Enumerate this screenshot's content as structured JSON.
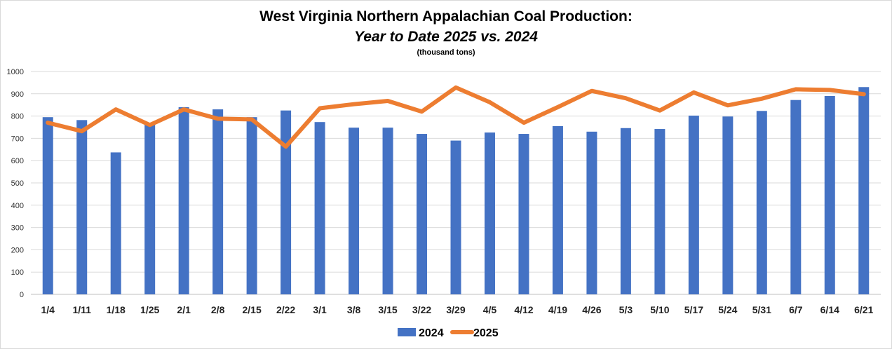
{
  "chart_data": {
    "type": "bar",
    "title": "West Virginia Northern Appalachian Coal Production:",
    "subtitle": "Year to Date 2025 vs. 2024",
    "unit_note": "(thousand tons)",
    "xlabel": "",
    "ylabel": "",
    "ylim": [
      0,
      1000
    ],
    "yticks": [
      0,
      100,
      200,
      300,
      400,
      500,
      600,
      700,
      800,
      900,
      1000
    ],
    "grid": true,
    "legend_position": "bottom",
    "categories": [
      "1/4",
      "1/11",
      "1/18",
      "1/25",
      "2/1",
      "2/8",
      "2/15",
      "2/22",
      "3/1",
      "3/8",
      "3/15",
      "3/22",
      "3/29",
      "4/5",
      "4/12",
      "4/19",
      "4/26",
      "5/3",
      "5/10",
      "5/17",
      "5/24",
      "5/31",
      "6/7",
      "6/14",
      "6/21"
    ],
    "series": [
      {
        "name": "2024",
        "kind": "bar",
        "color": "#4472C4",
        "values": [
          795,
          782,
          637,
          768,
          840,
          830,
          795,
          825,
          773,
          748,
          748,
          720,
          690,
          726,
          720,
          755,
          730,
          746,
          742,
          802,
          798,
          823,
          872,
          890,
          930
        ]
      },
      {
        "name": "2025",
        "kind": "line",
        "color": "#ED7D31",
        "values": [
          770,
          732,
          830,
          760,
          830,
          788,
          785,
          663,
          835,
          853,
          868,
          820,
          928,
          862,
          770,
          840,
          913,
          880,
          825,
          906,
          848,
          878,
          920,
          917,
          898
        ]
      }
    ]
  }
}
